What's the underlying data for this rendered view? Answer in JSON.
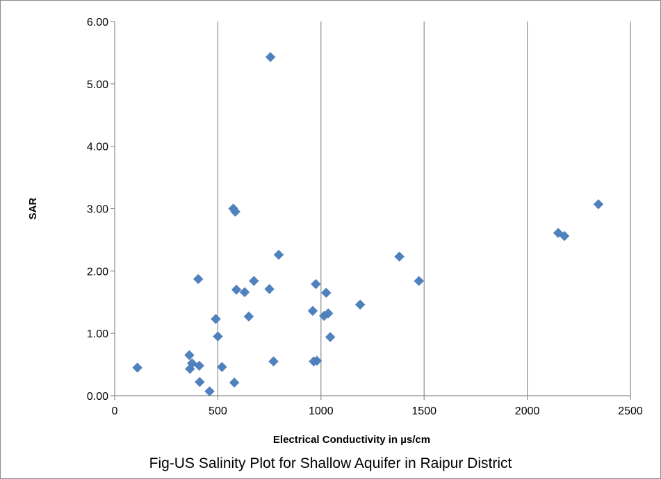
{
  "caption": "Fig-US Salinity Plot for Shallow Aquifer in Raipur District",
  "colors": {
    "marker": "#4f81bd",
    "gridline": "#8c8c8c",
    "axis": "#8c8c8c"
  },
  "chart_data": {
    "type": "scatter",
    "title": "",
    "xlabel": "Electrical Conductivity in µs/cm",
    "ylabel": "SAR",
    "xlim": [
      0,
      2500
    ],
    "ylim": [
      0,
      6
    ],
    "x_ticks": [
      0,
      500,
      1000,
      1500,
      2000,
      2500
    ],
    "y_ticks": [
      0,
      1,
      2,
      3,
      4,
      5,
      6
    ],
    "x_tick_labels": [
      "0",
      "500",
      "1000",
      "1500",
      "2000",
      "2500"
    ],
    "y_tick_labels": [
      "0.00",
      "1.00",
      "2.00",
      "3.00",
      "4.00",
      "5.00",
      "6.00"
    ],
    "vertical_gridlines": true,
    "horizontal_gridlines": false,
    "marker": "diamond",
    "series": [
      {
        "points": [
          [
            110,
            0.45
          ],
          [
            362,
            0.65
          ],
          [
            365,
            0.43
          ],
          [
            375,
            0.52
          ],
          [
            405,
            1.87
          ],
          [
            410,
            0.48
          ],
          [
            412,
            0.22
          ],
          [
            460,
            0.07
          ],
          [
            490,
            1.23
          ],
          [
            500,
            0.95
          ],
          [
            520,
            0.46
          ],
          [
            575,
            3.0
          ],
          [
            580,
            0.21
          ],
          [
            585,
            2.95
          ],
          [
            590,
            1.7
          ],
          [
            630,
            1.66
          ],
          [
            650,
            1.27
          ],
          [
            675,
            1.84
          ],
          [
            750,
            1.71
          ],
          [
            755,
            5.43
          ],
          [
            770,
            0.55
          ],
          [
            795,
            2.26
          ],
          [
            960,
            1.36
          ],
          [
            965,
            0.55
          ],
          [
            975,
            1.79
          ],
          [
            980,
            0.56
          ],
          [
            1015,
            1.28
          ],
          [
            1025,
            1.65
          ],
          [
            1035,
            1.32
          ],
          [
            1045,
            0.94
          ],
          [
            1190,
            1.46
          ],
          [
            1380,
            2.23
          ],
          [
            1475,
            1.84
          ],
          [
            2150,
            2.61
          ],
          [
            2180,
            2.56
          ],
          [
            2345,
            3.07
          ]
        ]
      }
    ]
  }
}
